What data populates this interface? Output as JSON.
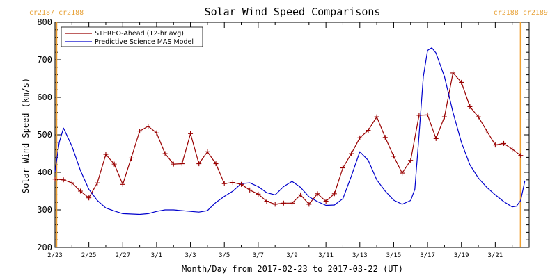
{
  "chart_data": {
    "type": "line",
    "title": "Solar Wind Speed Comparisons",
    "xlabel": "Month/Day from 2017-02-23 to 2017-03-22 (UT)",
    "ylabel": "Solar Wind Speed (km/s)",
    "xlim": [
      "2017-02-23",
      "2017-03-23"
    ],
    "ylim": [
      200,
      800
    ],
    "yticks": [
      200,
      300,
      400,
      500,
      600,
      700,
      800
    ],
    "xtick_labels": [
      {
        "x": "2017-02-23",
        "label": "2/23"
      },
      {
        "x": "2017-02-25",
        "label": "2/25"
      },
      {
        "x": "2017-02-27",
        "label": "2/27"
      },
      {
        "x": "2017-03-01",
        "label": "3/1"
      },
      {
        "x": "2017-03-03",
        "label": "3/3"
      },
      {
        "x": "2017-03-05",
        "label": "3/5"
      },
      {
        "x": "2017-03-07",
        "label": "3/7"
      },
      {
        "x": "2017-03-09",
        "label": "3/9"
      },
      {
        "x": "2017-03-11",
        "label": "3/11"
      },
      {
        "x": "2017-03-13",
        "label": "3/13"
      },
      {
        "x": "2017-03-15",
        "label": "3/15"
      },
      {
        "x": "2017-03-17",
        "label": "3/17"
      },
      {
        "x": "2017-03-19",
        "label": "3/19"
      },
      {
        "x": "2017-03-21",
        "label": "3/21"
      }
    ],
    "carrington_markers": [
      {
        "x": "2017-02-23 02:00",
        "left_label": "cr2187",
        "right_label": "cr2188"
      },
      {
        "x": "2017-03-22 12:00",
        "left_label": "cr2188",
        "right_label": "cr2189"
      }
    ],
    "legend": {
      "position": "top-left"
    },
    "series": [
      {
        "name": "STEREO-Ahead (12-hr avg)",
        "color": "#990000",
        "marker": "plus",
        "points": [
          [
            "2017-02-23 00:00",
            382
          ],
          [
            "2017-02-23 12:00",
            380
          ],
          [
            "2017-02-24 00:00",
            372
          ],
          [
            "2017-02-24 12:00",
            350
          ],
          [
            "2017-02-25 00:00",
            332
          ],
          [
            "2017-02-25 12:00",
            372
          ],
          [
            "2017-02-26 00:00",
            448
          ],
          [
            "2017-02-26 12:00",
            422
          ],
          [
            "2017-02-27 00:00",
            368
          ],
          [
            "2017-02-27 12:00",
            438
          ],
          [
            "2017-02-28 00:00",
            510
          ],
          [
            "2017-02-28 12:00",
            523
          ],
          [
            "2017-03-01 00:00",
            505
          ],
          [
            "2017-03-01 12:00",
            450
          ],
          [
            "2017-03-02 00:00",
            422
          ],
          [
            "2017-03-02 12:00",
            423
          ],
          [
            "2017-03-03 00:00",
            503
          ],
          [
            "2017-03-03 12:00",
            423
          ],
          [
            "2017-03-04 00:00",
            455
          ],
          [
            "2017-03-04 12:00",
            423
          ],
          [
            "2017-03-05 00:00",
            370
          ],
          [
            "2017-03-05 12:00",
            373
          ],
          [
            "2017-03-06 00:00",
            368
          ],
          [
            "2017-03-06 12:00",
            353
          ],
          [
            "2017-03-07 00:00",
            342
          ],
          [
            "2017-03-07 12:00",
            323
          ],
          [
            "2017-03-08 00:00",
            315
          ],
          [
            "2017-03-08 12:00",
            318
          ],
          [
            "2017-03-09 00:00",
            318
          ],
          [
            "2017-03-09 12:00",
            340
          ],
          [
            "2017-03-10 00:00",
            315
          ],
          [
            "2017-03-10 12:00",
            343
          ],
          [
            "2017-03-11 00:00",
            323
          ],
          [
            "2017-03-11 12:00",
            343
          ],
          [
            "2017-03-12 00:00",
            412
          ],
          [
            "2017-03-12 12:00",
            450
          ],
          [
            "2017-03-13 00:00",
            492
          ],
          [
            "2017-03-13 12:00",
            512
          ],
          [
            "2017-03-14 00:00",
            548
          ],
          [
            "2017-03-14 12:00",
            493
          ],
          [
            "2017-03-15 00:00",
            443
          ],
          [
            "2017-03-15 12:00",
            398
          ],
          [
            "2017-03-16 00:00",
            432
          ],
          [
            "2017-03-16 12:00",
            552
          ],
          [
            "2017-03-17 00:00",
            553
          ],
          [
            "2017-03-17 12:00",
            490
          ],
          [
            "2017-03-18 00:00",
            548
          ],
          [
            "2017-03-18 12:00",
            665
          ],
          [
            "2017-03-19 00:00",
            640
          ],
          [
            "2017-03-19 12:00",
            575
          ],
          [
            "2017-03-20 00:00",
            548
          ],
          [
            "2017-03-20 12:00",
            510
          ],
          [
            "2017-03-21 00:00",
            473
          ],
          [
            "2017-03-21 12:00",
            477
          ],
          [
            "2017-03-22 00:00",
            462
          ],
          [
            "2017-03-22 12:00",
            445
          ]
        ]
      },
      {
        "name": "Predictive Science MAS Model",
        "color": "#0000cc",
        "marker": "none",
        "points": [
          [
            "2017-02-23 00:00",
            402
          ],
          [
            "2017-02-23 06:00",
            480
          ],
          [
            "2017-02-23 12:00",
            518
          ],
          [
            "2017-02-24 00:00",
            470
          ],
          [
            "2017-02-24 12:00",
            405
          ],
          [
            "2017-02-25 00:00",
            355
          ],
          [
            "2017-02-25 12:00",
            325
          ],
          [
            "2017-02-26 00:00",
            305
          ],
          [
            "2017-02-26 12:00",
            297
          ],
          [
            "2017-02-27 00:00",
            290
          ],
          [
            "2017-02-28 00:00",
            288
          ],
          [
            "2017-02-28 12:00",
            290
          ],
          [
            "2017-03-01 00:00",
            296
          ],
          [
            "2017-03-01 12:00",
            300
          ],
          [
            "2017-03-02 00:00",
            300
          ],
          [
            "2017-03-03 00:00",
            296
          ],
          [
            "2017-03-03 12:00",
            294
          ],
          [
            "2017-03-04 00:00",
            298
          ],
          [
            "2017-03-04 12:00",
            320
          ],
          [
            "2017-03-05 00:00",
            336
          ],
          [
            "2017-03-05 12:00",
            350
          ],
          [
            "2017-03-06 00:00",
            370
          ],
          [
            "2017-03-06 12:00",
            372
          ],
          [
            "2017-03-07 00:00",
            362
          ],
          [
            "2017-03-07 12:00",
            346
          ],
          [
            "2017-03-08 00:00",
            340
          ],
          [
            "2017-03-08 12:00",
            362
          ],
          [
            "2017-03-09 00:00",
            376
          ],
          [
            "2017-03-09 12:00",
            360
          ],
          [
            "2017-03-10 00:00",
            335
          ],
          [
            "2017-03-10 12:00",
            322
          ],
          [
            "2017-03-11 00:00",
            312
          ],
          [
            "2017-03-11 12:00",
            313
          ],
          [
            "2017-03-12 00:00",
            330
          ],
          [
            "2017-03-12 12:00",
            390
          ],
          [
            "2017-03-13 00:00",
            455
          ],
          [
            "2017-03-13 12:00",
            432
          ],
          [
            "2017-03-14 00:00",
            380
          ],
          [
            "2017-03-14 12:00",
            350
          ],
          [
            "2017-03-15 00:00",
            326
          ],
          [
            "2017-03-15 12:00",
            315
          ],
          [
            "2017-03-16 00:00",
            325
          ],
          [
            "2017-03-16 06:00",
            355
          ],
          [
            "2017-03-16 12:00",
            500
          ],
          [
            "2017-03-16 18:00",
            655
          ],
          [
            "2017-03-17 00:00",
            725
          ],
          [
            "2017-03-17 06:00",
            732
          ],
          [
            "2017-03-17 12:00",
            718
          ],
          [
            "2017-03-18 00:00",
            655
          ],
          [
            "2017-03-18 12:00",
            560
          ],
          [
            "2017-03-19 00:00",
            480
          ],
          [
            "2017-03-19 12:00",
            420
          ],
          [
            "2017-03-20 00:00",
            385
          ],
          [
            "2017-03-20 12:00",
            360
          ],
          [
            "2017-03-21 00:00",
            340
          ],
          [
            "2017-03-21 12:00",
            322
          ],
          [
            "2017-03-22 00:00",
            308
          ],
          [
            "2017-03-22 06:00",
            310
          ],
          [
            "2017-03-22 12:00",
            325
          ],
          [
            "2017-03-22 18:00",
            378
          ]
        ]
      }
    ]
  }
}
